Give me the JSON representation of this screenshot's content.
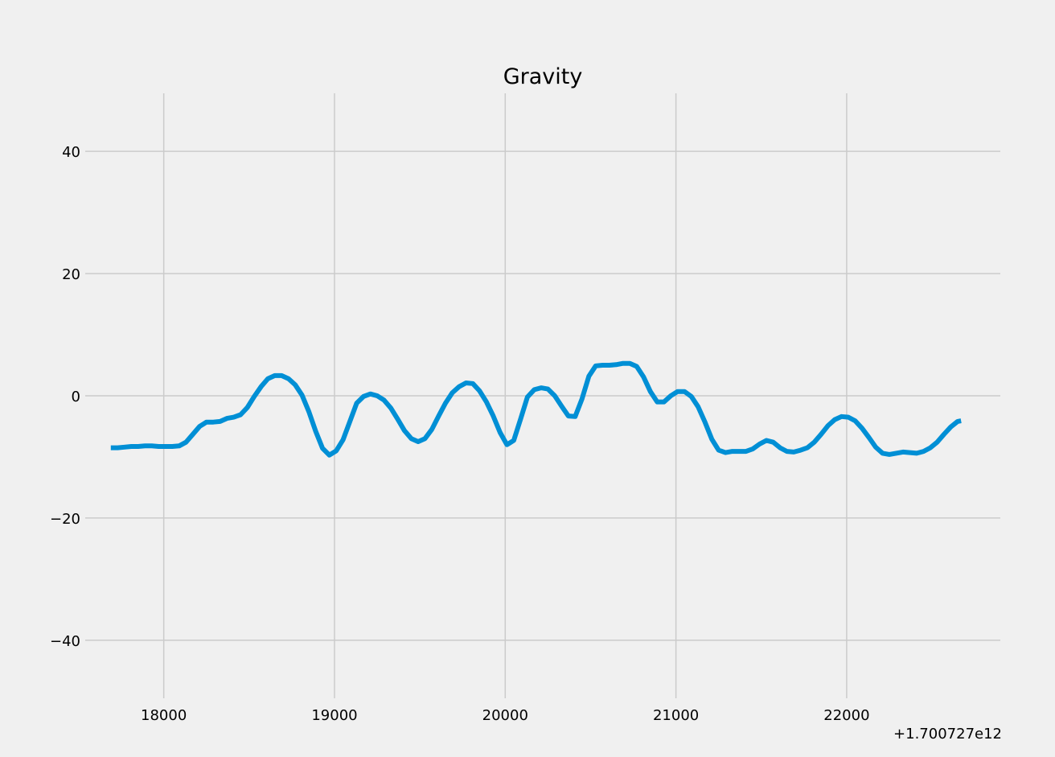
{
  "chart_data": {
    "type": "line",
    "title": "Gravity",
    "xlabel": "",
    "ylabel": "",
    "x_offset_label": "+1.700727e12",
    "xlim": [
      17540,
      22900
    ],
    "ylim": [
      -49.5,
      49.5
    ],
    "xticks": [
      18000,
      19000,
      20000,
      21000,
      22000
    ],
    "xtick_labels": [
      "18000",
      "19000",
      "20000",
      "21000",
      "22000"
    ],
    "yticks": [
      40,
      20,
      0,
      -20,
      -40
    ],
    "ytick_labels": [
      "40",
      "20",
      "0",
      "−20",
      "−40"
    ],
    "grid": true,
    "line_color": "#008fd5",
    "series": [
      {
        "x": [
          17690,
          17730,
          17770,
          17810,
          17850,
          17890,
          17930,
          17970,
          18010,
          18050,
          18090,
          18130,
          18170,
          18210,
          18250,
          18290,
          18330,
          18370,
          18410,
          18450,
          18490,
          18530,
          18570,
          18610,
          18650,
          18690,
          18730,
          18770,
          18810,
          18850,
          18890,
          18930,
          18970,
          19010,
          19050,
          19090,
          19130,
          19170,
          19210,
          19250,
          19290,
          19330,
          19370,
          19410,
          19450,
          19490,
          19530,
          19570,
          19610,
          19650,
          19690,
          19730,
          19770,
          19810,
          19850,
          19890,
          19930,
          19970,
          20010,
          20050,
          20090,
          20130,
          20170,
          20210,
          20250,
          20290,
          20330,
          20370,
          20410,
          20450,
          20490,
          20530,
          20570,
          20610,
          20650,
          20690,
          20730,
          20770,
          20810,
          20850,
          20890,
          20930,
          20970,
          21010,
          21050,
          21090,
          21130,
          21170,
          21210,
          21250,
          21290,
          21330,
          21370,
          21410,
          21450,
          21490,
          21530,
          21570,
          21610,
          21650,
          21690,
          21730,
          21770,
          21810,
          21850,
          21890,
          21930,
          21970,
          22010,
          22050,
          22090,
          22130,
          22170,
          22210,
          22250,
          22290,
          22330,
          22370,
          22410,
          22450,
          22490,
          22530,
          22570,
          22610,
          22650,
          22670
        ],
        "values": [
          -8.5,
          -8.5,
          -8.4,
          -8.3,
          -8.3,
          -8.2,
          -8.2,
          -8.3,
          -8.3,
          -8.3,
          -8.2,
          -7.6,
          -6.3,
          -5.0,
          -4.3,
          -4.3,
          -4.2,
          -3.7,
          -3.5,
          -3.1,
          -1.9,
          -0.1,
          1.5,
          2.8,
          3.3,
          3.3,
          2.8,
          1.8,
          0.1,
          -2.6,
          -5.8,
          -8.6,
          -9.7,
          -9.0,
          -7.2,
          -4.2,
          -1.2,
          -0.1,
          0.3,
          0.0,
          -0.7,
          -2.0,
          -3.8,
          -5.7,
          -7.0,
          -7.5,
          -7.0,
          -5.5,
          -3.3,
          -1.2,
          0.5,
          1.5,
          2.1,
          2.0,
          0.8,
          -1.0,
          -3.3,
          -6.0,
          -8.0,
          -7.3,
          -3.8,
          -0.2,
          1.0,
          1.3,
          1.1,
          0.0,
          -1.7,
          -3.3,
          -3.4,
          -0.5,
          3.2,
          4.9,
          5.0,
          5.0,
          5.1,
          5.3,
          5.3,
          4.8,
          3.1,
          0.7,
          -1.0,
          -1.0,
          0.0,
          0.7,
          0.7,
          -0.1,
          -1.8,
          -4.3,
          -7.1,
          -8.9,
          -9.3,
          -9.1,
          -9.1,
          -9.1,
          -8.7,
          -7.9,
          -7.3,
          -7.6,
          -8.5,
          -9.1,
          -9.2,
          -8.9,
          -8.5,
          -7.6,
          -6.3,
          -4.9,
          -3.9,
          -3.4,
          -3.5,
          -4.1,
          -5.3,
          -6.8,
          -8.4,
          -9.4,
          -9.6,
          -9.4,
          -9.2,
          -9.3,
          -9.4,
          -9.1,
          -8.5,
          -7.6,
          -6.3,
          -5.1,
          -4.2,
          -4.1
        ]
      }
    ]
  }
}
